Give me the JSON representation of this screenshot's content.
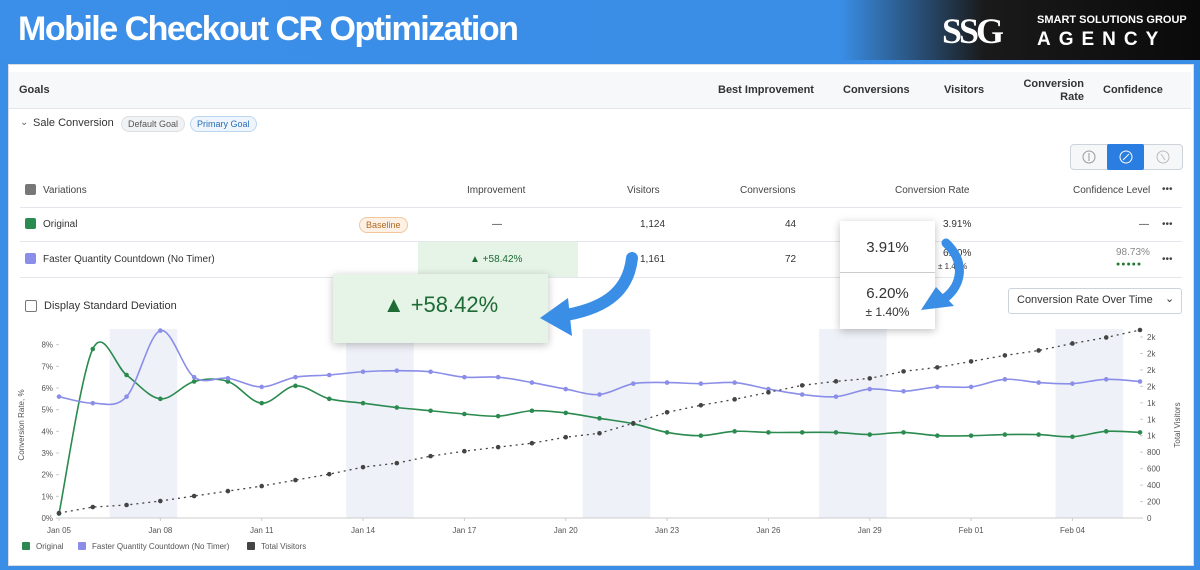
{
  "header": {
    "title": "Mobile Checkout CR Optimization",
    "brand_logo": "SSG",
    "brand_line1": "SMART SOLUTIONS GROUP",
    "brand_line2": "AGENCY"
  },
  "goals_table": {
    "columns": [
      "Goals",
      "Best Improvement",
      "Conversions",
      "Visitors",
      "Conversion Rate",
      "Confidence"
    ]
  },
  "goal": {
    "name": "Sale Conversion",
    "tags": [
      "Default Goal",
      "Primary Goal"
    ]
  },
  "variations_table": {
    "columns": [
      "Variations",
      "Improvement",
      "Visitors",
      "Conversions",
      "Conversion Rate",
      "Confidence Level"
    ],
    "menu": "•••",
    "rows": [
      {
        "name": "Original",
        "badge": "Baseline",
        "improvement": "—",
        "visitors": "1,124",
        "conversions": "44",
        "conversion_rate": "3.91%",
        "confidence": "—"
      },
      {
        "name": "Faster Quantity Countdown (No Timer)",
        "improvement": "▲ +58.42%",
        "visitors": "1,161",
        "conversions": "72",
        "conversion_rate": "6.20%",
        "conversion_rate_error": "± 1.40%",
        "confidence": "98.73%"
      }
    ]
  },
  "controls": {
    "std_dev": "Display Standard Deviation",
    "chart_select": "Conversion Rate Over Time"
  },
  "callouts": {
    "improvement": "▲ +58.42%",
    "rate_original": "3.91%",
    "rate_variation": "6.20%",
    "rate_variation_error": "± 1.40%"
  },
  "chart_data": {
    "type": "line",
    "y_label": "Conversion Rate, %",
    "y2_label": "Total Visitors",
    "grid": false,
    "categories": [
      "Jan 05",
      null,
      null,
      "Jan 08",
      null,
      null,
      "Jan 11",
      null,
      null,
      "Jan 14",
      null,
      null,
      "Jan 17",
      null,
      null,
      "Jan 20",
      null,
      null,
      "Jan 23",
      null,
      null,
      "Jan 26",
      null,
      null,
      "Jan 29",
      null,
      null,
      "Feb 01",
      null,
      null,
      "Feb 04",
      null,
      null
    ],
    "series": [
      {
        "name": "Original",
        "color": "#2a8a4f",
        "values": [
          0.2,
          7.8,
          6.6,
          5.5,
          6.3,
          6.3,
          5.3,
          6.1,
          5.5,
          5.3,
          5.1,
          4.95,
          4.8,
          4.7,
          4.95,
          4.85,
          4.6,
          4.35,
          3.95,
          3.8,
          4.0,
          3.95,
          3.95,
          3.95,
          3.85,
          3.95,
          3.8,
          3.8,
          3.85,
          3.85,
          3.75,
          4.0,
          3.95
        ]
      },
      {
        "name": "Faster Quantity Countdown (No Timer)",
        "color": "#8a8ee8",
        "values": [
          5.6,
          5.3,
          5.6,
          8.65,
          6.5,
          6.45,
          6.05,
          6.5,
          6.6,
          6.75,
          6.8,
          6.75,
          6.5,
          6.5,
          6.25,
          5.95,
          5.7,
          6.2,
          6.25,
          6.2,
          6.25,
          5.95,
          5.7,
          5.6,
          5.95,
          5.85,
          6.05,
          6.05,
          6.4,
          6.25,
          6.2,
          6.4,
          6.3
        ]
      },
      {
        "name": "Total Visitors",
        "color": "#444444",
        "axis": "y2",
        "values": [
          60,
          133,
          158,
          206,
          267,
          327,
          388,
          461,
          533,
          618,
          667,
          752,
          812,
          861,
          909,
          982,
          1030,
          1152,
          1285,
          1370,
          1442,
          1527,
          1612,
          1661,
          1697,
          1782,
          1830,
          1903,
          1976,
          2036,
          2121,
          2194,
          2285
        ]
      }
    ],
    "ylim": [
      0,
      9
    ],
    "yticks": [
      {
        "value": 0,
        "label": "0%"
      },
      {
        "value": 1,
        "label": "1%"
      },
      {
        "value": 2,
        "label": "2%"
      },
      {
        "value": 3,
        "label": "3%"
      },
      {
        "value": 4,
        "label": "4%"
      },
      {
        "value": 5,
        "label": "5%"
      },
      {
        "value": 6,
        "label": "6%"
      },
      {
        "value": 7,
        "label": "7%"
      },
      {
        "value": 8,
        "label": "8%"
      }
    ],
    "y2lim": [
      0,
      2370
    ],
    "y2ticks": [
      0,
      200,
      400,
      600,
      800,
      {
        "value": 1000,
        "label": "1k"
      },
      {
        "value": 1200,
        "label": "1k"
      },
      {
        "value": 1400,
        "label": "1k"
      },
      {
        "value": 1600,
        "label": "2k"
      },
      {
        "value": 1800,
        "label": "2k"
      },
      {
        "value": 2000,
        "label": "2k"
      },
      {
        "value": 2200,
        "label": "2k"
      }
    ]
  }
}
